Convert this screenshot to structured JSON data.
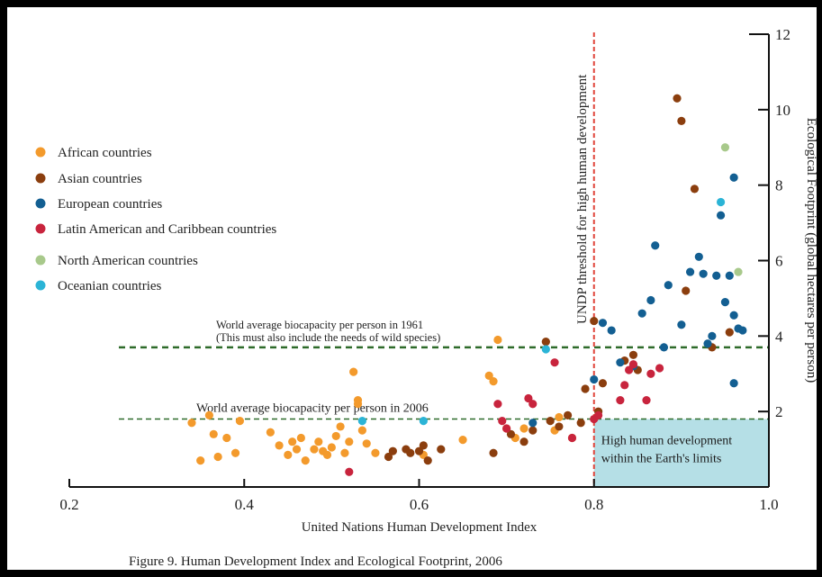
{
  "chart_data": {
    "type": "scatter",
    "caption": "Figure 9.  Human Development Index and Ecological Footprint, 2006",
    "xlabel": "United Nations Human Development Index",
    "ylabel": "Ecological Footprint (global hectares per person)",
    "xlim": [
      0.2,
      1.0
    ],
    "ylim": [
      0,
      12
    ],
    "x_ticks": [
      "0.2",
      "0.4",
      "0.6",
      "0.8",
      "1.0"
    ],
    "y_ticks": [
      "2",
      "4",
      "6",
      "8",
      "10",
      "12"
    ],
    "grid": false,
    "legend_position": "left",
    "threshold": {
      "x": 0.8,
      "label": "UNDP threshold for high human development",
      "color": "#e0443a"
    },
    "biocapacity_1961": {
      "y": 3.7,
      "line1": "World average biocapacity per person in 1961",
      "line2": "(This must also include the needs of wild species)",
      "color": "#2e6b2a"
    },
    "biocapacity_2006": {
      "y": 1.8,
      "label": "World average biocapacity per person in 2006",
      "color": "#2e6b2a"
    },
    "zone": {
      "line1": "High human development",
      "line2": "within the Earth's limits",
      "color": "#b5dfe6"
    },
    "series": [
      {
        "name": "African countries",
        "color": "#f39a2c",
        "points": [
          [
            0.34,
            1.7
          ],
          [
            0.35,
            0.7
          ],
          [
            0.36,
            1.9
          ],
          [
            0.365,
            1.4
          ],
          [
            0.37,
            0.8
          ],
          [
            0.38,
            1.3
          ],
          [
            0.39,
            0.9
          ],
          [
            0.395,
            1.75
          ],
          [
            0.43,
            1.45
          ],
          [
            0.44,
            1.1
          ],
          [
            0.45,
            0.85
          ],
          [
            0.455,
            1.2
          ],
          [
            0.46,
            1.0
          ],
          [
            0.465,
            1.3
          ],
          [
            0.47,
            0.7
          ],
          [
            0.48,
            1.0
          ],
          [
            0.485,
            1.2
          ],
          [
            0.49,
            0.95
          ],
          [
            0.495,
            0.85
          ],
          [
            0.5,
            1.05
          ],
          [
            0.505,
            1.35
          ],
          [
            0.51,
            1.6
          ],
          [
            0.515,
            0.9
          ],
          [
            0.52,
            1.2
          ],
          [
            0.525,
            3.05
          ],
          [
            0.53,
            2.3
          ],
          [
            0.53,
            2.2
          ],
          [
            0.535,
            1.5
          ],
          [
            0.54,
            1.15
          ],
          [
            0.55,
            0.9
          ],
          [
            0.605,
            0.85
          ],
          [
            0.65,
            1.25
          ],
          [
            0.68,
            2.95
          ],
          [
            0.685,
            2.8
          ],
          [
            0.69,
            3.9
          ],
          [
            0.7,
            1.55
          ],
          [
            0.71,
            1.3
          ],
          [
            0.72,
            1.55
          ],
          [
            0.755,
            1.5
          ],
          [
            0.76,
            1.85
          ],
          [
            0.775,
            1.3
          ]
        ]
      },
      {
        "name": "Asian countries",
        "color": "#8b3e0e",
        "points": [
          [
            0.565,
            0.8
          ],
          [
            0.57,
            0.95
          ],
          [
            0.585,
            1.0
          ],
          [
            0.59,
            0.9
          ],
          [
            0.6,
            0.95
          ],
          [
            0.605,
            1.1
          ],
          [
            0.61,
            0.7
          ],
          [
            0.625,
            1.0
          ],
          [
            0.685,
            0.9
          ],
          [
            0.705,
            1.4
          ],
          [
            0.72,
            1.2
          ],
          [
            0.73,
            1.5
          ],
          [
            0.745,
            3.85
          ],
          [
            0.75,
            1.75
          ],
          [
            0.76,
            1.6
          ],
          [
            0.77,
            1.9
          ],
          [
            0.785,
            1.7
          ],
          [
            0.79,
            2.6
          ],
          [
            0.8,
            4.4
          ],
          [
            0.805,
            2.0
          ],
          [
            0.81,
            2.75
          ],
          [
            0.835,
            3.35
          ],
          [
            0.845,
            3.5
          ],
          [
            0.85,
            3.1
          ],
          [
            0.895,
            10.3
          ],
          [
            0.9,
            9.7
          ],
          [
            0.905,
            5.2
          ],
          [
            0.915,
            7.9
          ],
          [
            0.935,
            3.7
          ],
          [
            0.955,
            4.1
          ]
        ]
      },
      {
        "name": "European countries",
        "color": "#135f92",
        "points": [
          [
            0.73,
            1.7
          ],
          [
            0.8,
            2.85
          ],
          [
            0.81,
            4.35
          ],
          [
            0.82,
            4.15
          ],
          [
            0.83,
            3.3
          ],
          [
            0.845,
            3.2
          ],
          [
            0.855,
            4.6
          ],
          [
            0.865,
            4.95
          ],
          [
            0.87,
            6.4
          ],
          [
            0.88,
            3.7
          ],
          [
            0.885,
            5.35
          ],
          [
            0.9,
            4.3
          ],
          [
            0.91,
            5.7
          ],
          [
            0.92,
            6.1
          ],
          [
            0.925,
            5.65
          ],
          [
            0.93,
            3.8
          ],
          [
            0.935,
            4.0
          ],
          [
            0.94,
            5.6
          ],
          [
            0.945,
            7.2
          ],
          [
            0.95,
            4.9
          ],
          [
            0.955,
            5.6
          ],
          [
            0.96,
            8.2
          ],
          [
            0.96,
            4.55
          ],
          [
            0.96,
            2.75
          ],
          [
            0.965,
            4.2
          ],
          [
            0.97,
            4.15
          ]
        ]
      },
      {
        "name": "Latin American and Caribbean countries",
        "color": "#c8243d",
        "points": [
          [
            0.52,
            0.4
          ],
          [
            0.69,
            2.2
          ],
          [
            0.695,
            1.75
          ],
          [
            0.7,
            1.55
          ],
          [
            0.725,
            2.35
          ],
          [
            0.73,
            2.2
          ],
          [
            0.755,
            3.3
          ],
          [
            0.775,
            1.3
          ],
          [
            0.8,
            1.8
          ],
          [
            0.805,
            1.9
          ],
          [
            0.83,
            2.3
          ],
          [
            0.835,
            2.7
          ],
          [
            0.84,
            3.1
          ],
          [
            0.845,
            3.25
          ],
          [
            0.86,
            2.3
          ],
          [
            0.865,
            3.0
          ],
          [
            0.875,
            3.15
          ]
        ]
      },
      {
        "name": "North American countries",
        "color": "#a8c98b",
        "points": [
          [
            0.95,
            9.0
          ],
          [
            0.965,
            5.7
          ]
        ]
      },
      {
        "name": "Oceanian countries",
        "color": "#2bb4d6",
        "points": [
          [
            0.535,
            1.75
          ],
          [
            0.605,
            1.75
          ],
          [
            0.745,
            3.65
          ],
          [
            0.945,
            7.55
          ]
        ]
      }
    ]
  }
}
